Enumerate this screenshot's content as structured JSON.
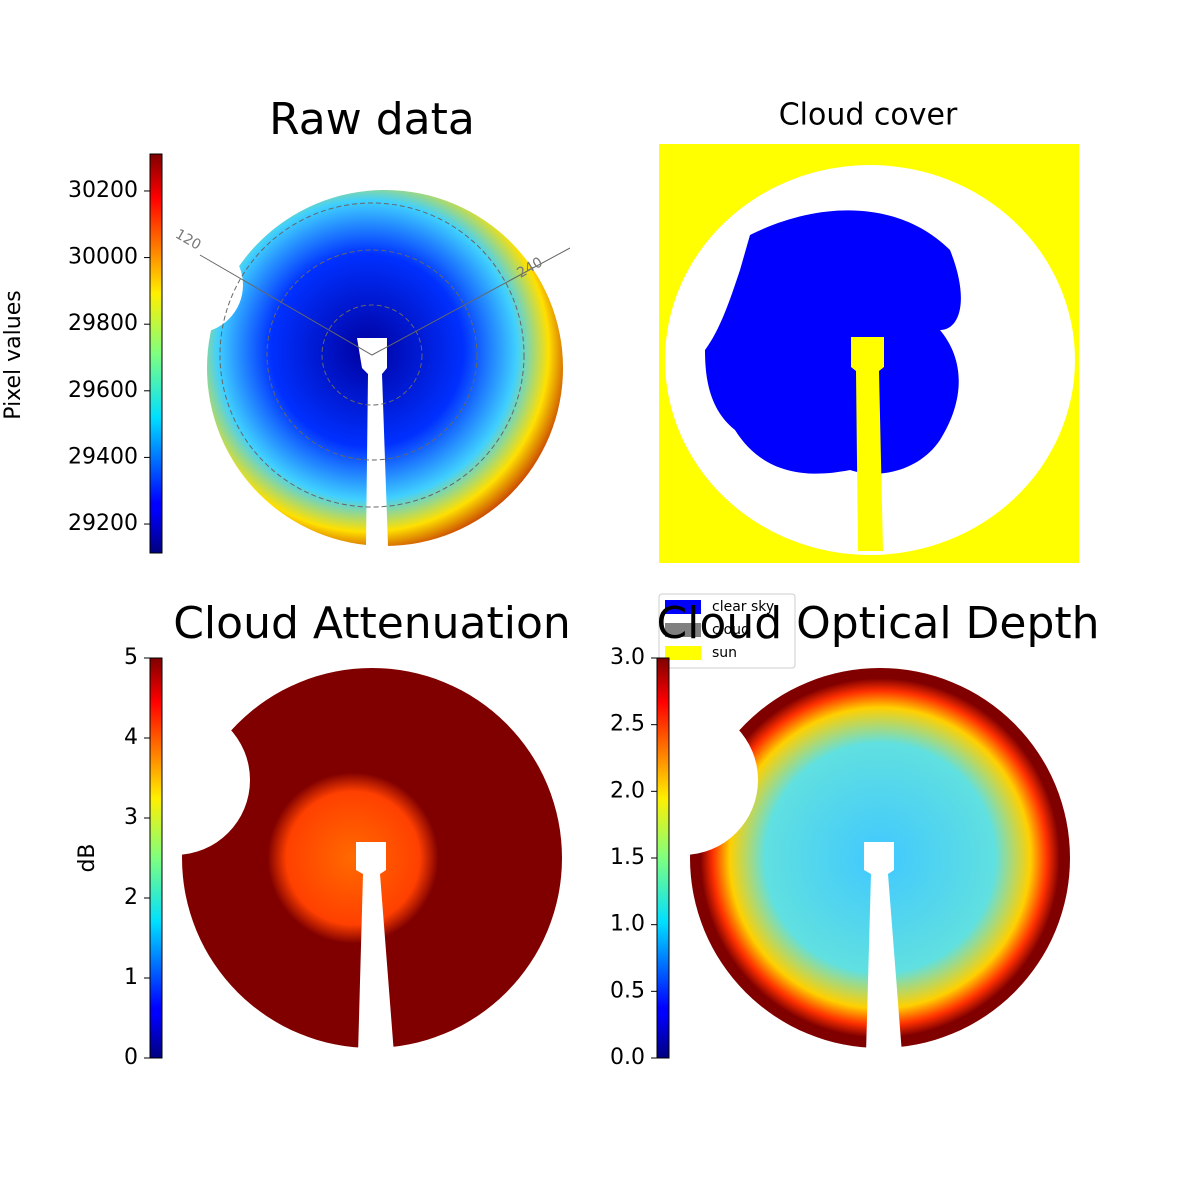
{
  "chart_data": [
    {
      "type": "image",
      "title": "Raw data",
      "colorbar_label": "Pixel values",
      "colormap": "jet",
      "clim": [
        29113,
        30311
      ],
      "cticks": [
        29200,
        29400,
        29600,
        29800,
        30000,
        30200
      ],
      "annotations": [
        "120",
        "240"
      ]
    },
    {
      "type": "classified-image",
      "title": "Cloud cover",
      "categories": [
        "clear sky",
        "cloud",
        "sun"
      ],
      "colors": [
        "#0000ff",
        "#808080",
        "#ffff00"
      ]
    },
    {
      "type": "image",
      "title": "Cloud Attenuation",
      "colorbar_label": "dB",
      "colormap": "jet",
      "clim": [
        0,
        5
      ],
      "cticks": [
        0,
        1,
        2,
        3,
        4,
        5
      ]
    },
    {
      "type": "image",
      "title": "Cloud Optical Depth",
      "colormap": "jet",
      "clim": [
        0,
        3
      ],
      "cticks": [
        {
          "value": 0,
          "label": "0.0"
        },
        0.5,
        {
          "value": 1,
          "label": "1.0"
        },
        1.5,
        {
          "value": 2,
          "label": "2.0"
        },
        2.5,
        {
          "value": 3,
          "label": "3.0"
        }
      ]
    }
  ]
}
